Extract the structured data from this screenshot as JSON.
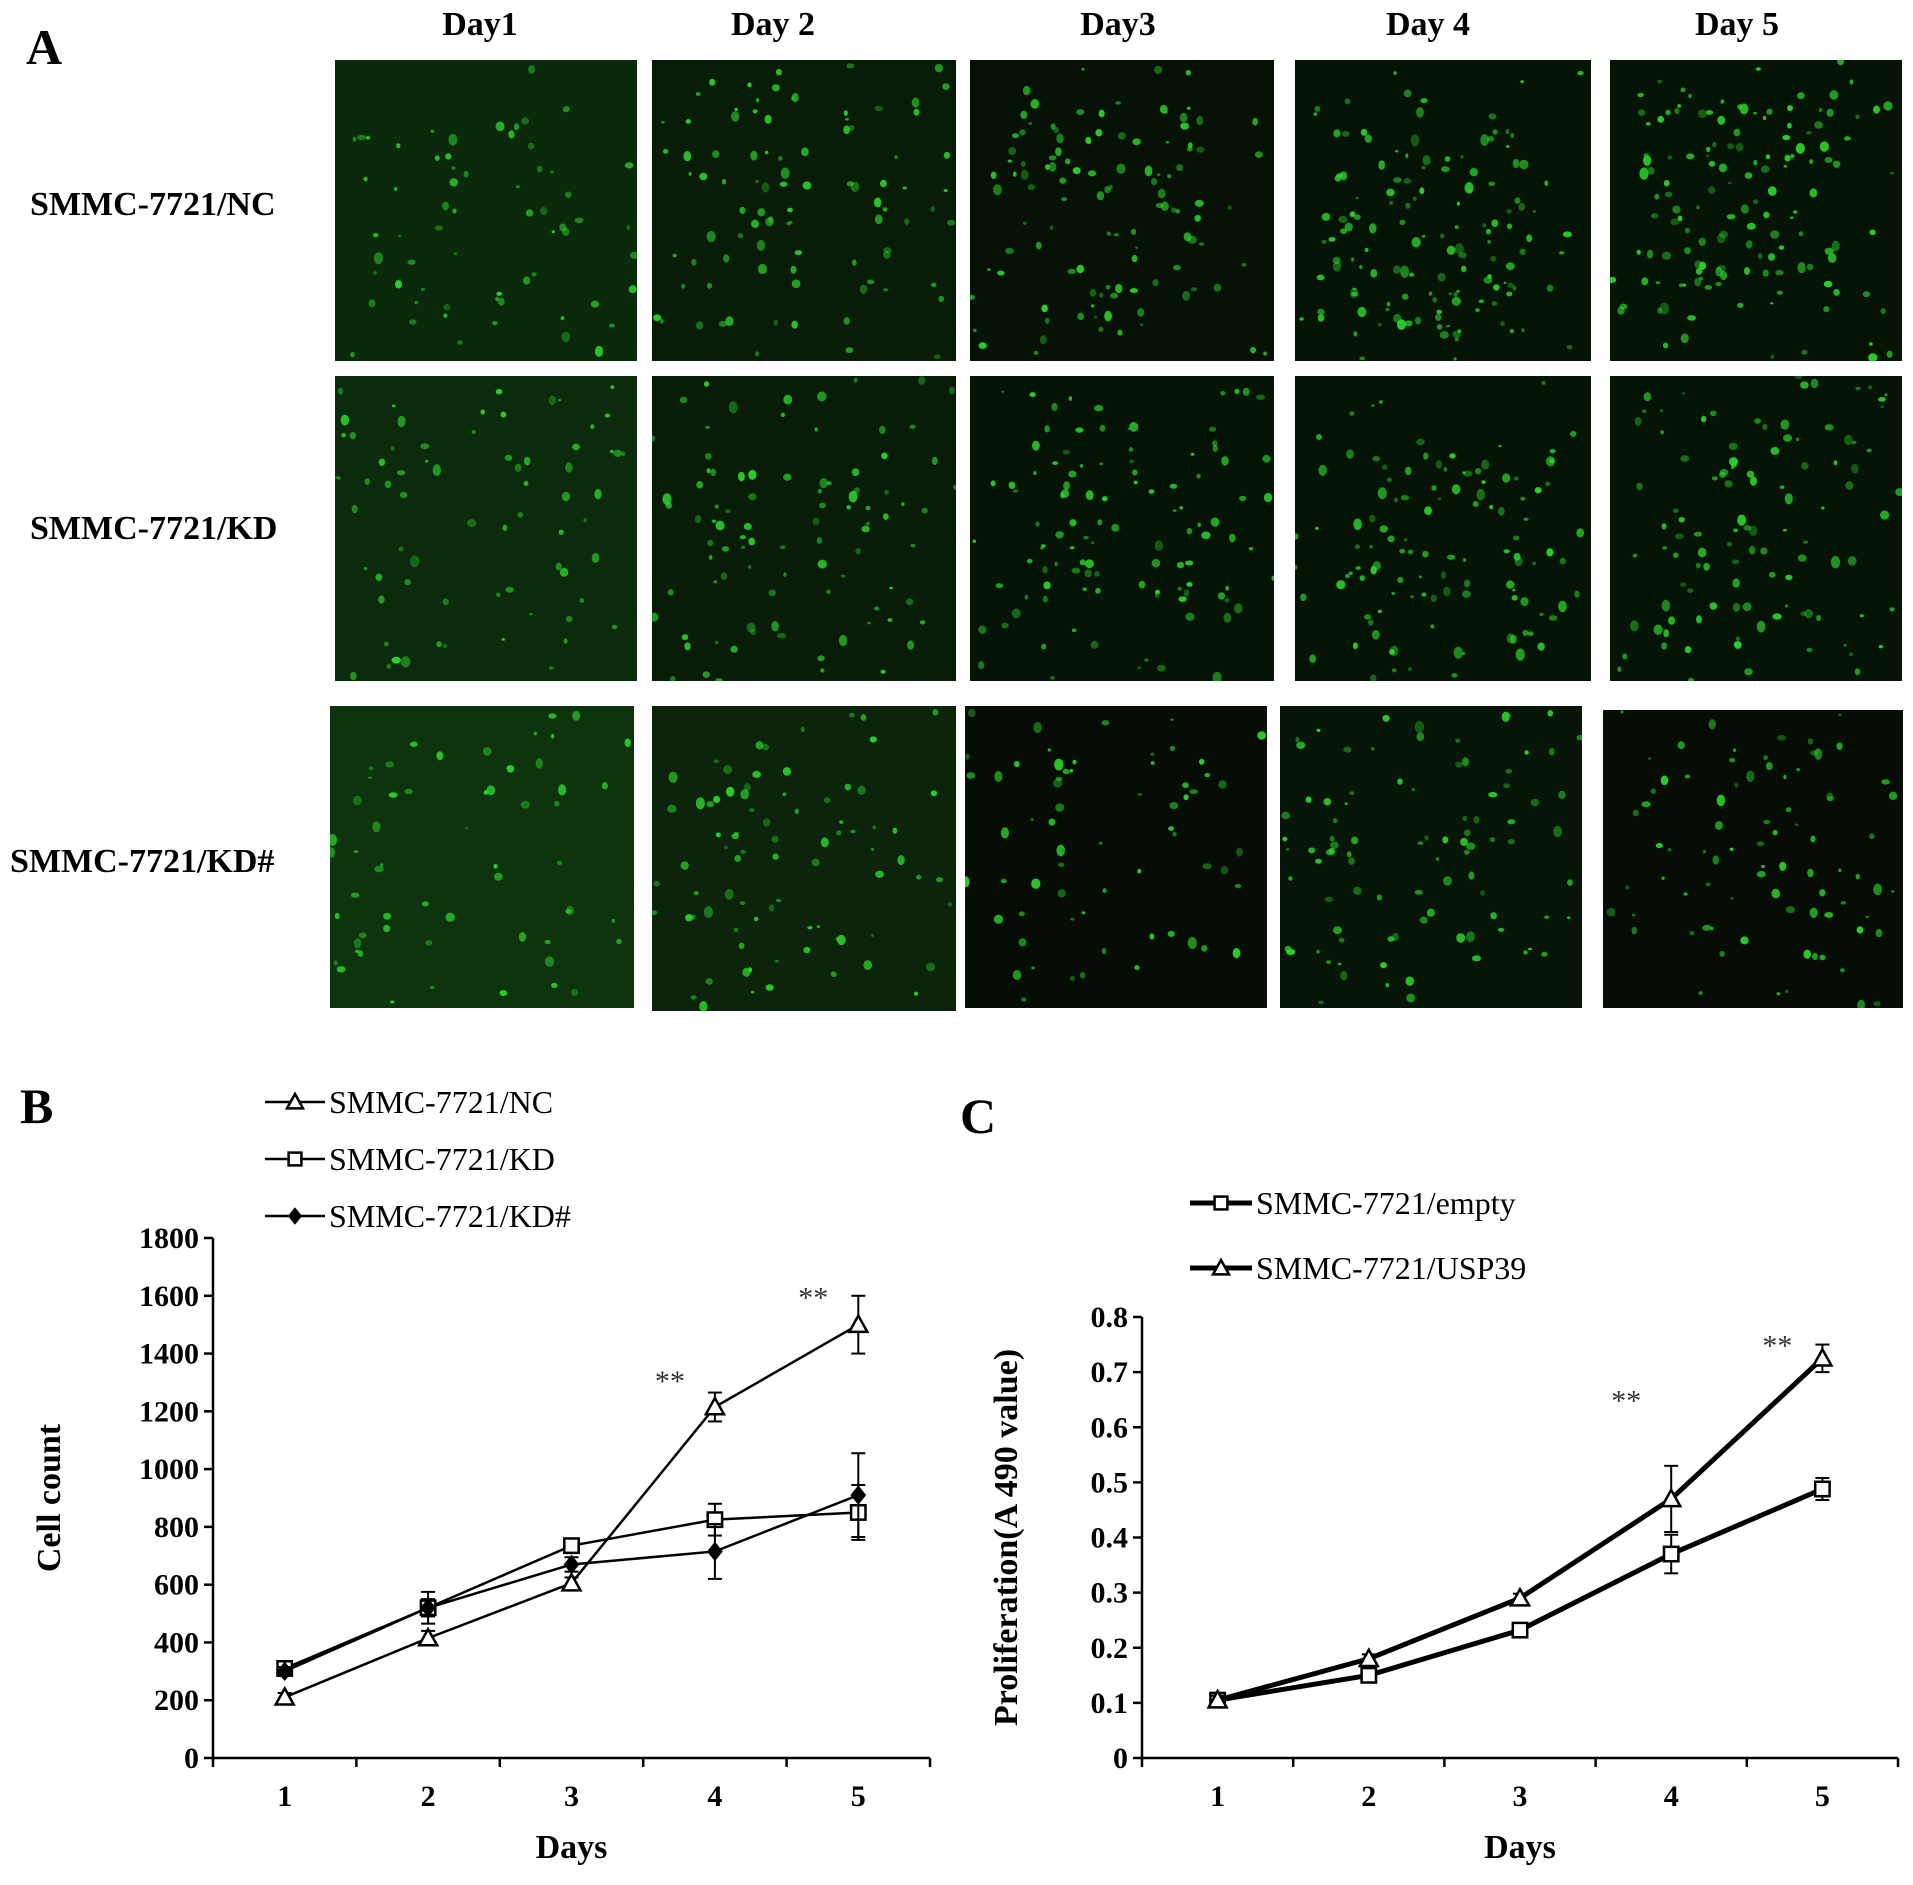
{
  "panel_a": {
    "letter": "A",
    "days": [
      "Day1",
      "Day 2",
      "Day3",
      "Day 4",
      "Day 5"
    ],
    "rows": [
      "SMMC-7721/NC",
      "SMMC-7721/KD",
      "SMMC-7721/KD#"
    ],
    "image_color": "#2fd62f",
    "density": [
      [
        0.3,
        0.55,
        0.75,
        1.0,
        1.0
      ],
      [
        0.35,
        0.55,
        0.7,
        0.75,
        0.7
      ],
      [
        0.25,
        0.45,
        0.3,
        0.55,
        0.45
      ]
    ]
  },
  "panel_b": {
    "letter": "B"
  },
  "panel_c": {
    "letter": "C"
  },
  "chart_data": [
    {
      "type": "line",
      "panel": "B",
      "x": [
        1,
        2,
        3,
        4,
        5
      ],
      "xlabel": "Days",
      "ylabel": "Cell count",
      "ylim": [
        0,
        1800
      ],
      "yticks": [
        0,
        200,
        400,
        600,
        800,
        1000,
        1200,
        1400,
        1600,
        1800
      ],
      "legend_position": "top-left",
      "series": [
        {
          "name": "SMMC-7721/NC",
          "marker": "triangle-open",
          "values": [
            210,
            415,
            605,
            1215,
            1500
          ],
          "errors": [
            15,
            25,
            20,
            50,
            100
          ]
        },
        {
          "name": "SMMC-7721/KD",
          "marker": "square-open",
          "values": [
            310,
            520,
            735,
            825,
            850
          ],
          "errors": [
            15,
            30,
            15,
            55,
            95
          ]
        },
        {
          "name": "SMMC-7721/KD#",
          "marker": "diamond-filled",
          "values": [
            300,
            520,
            670,
            715,
            910
          ],
          "errors": [
            15,
            55,
            25,
            95,
            145
          ]
        }
      ],
      "annotations": [
        {
          "x": 4,
          "y": 1270,
          "text": "**"
        },
        {
          "x": 5,
          "y": 1560,
          "text": "**"
        }
      ]
    },
    {
      "type": "line",
      "panel": "C",
      "x": [
        1,
        2,
        3,
        4,
        5
      ],
      "xlabel": "Days",
      "ylabel": "Proliferation(A 490 value)",
      "ylim": [
        0,
        0.8
      ],
      "yticks": [
        0,
        0.1,
        0.2,
        0.3,
        0.4,
        0.5,
        0.6,
        0.7,
        0.8
      ],
      "legend_position": "top-left",
      "series": [
        {
          "name": "SMMC-7721/empty",
          "marker": "square-open",
          "values": [
            0.105,
            0.15,
            0.232,
            0.37,
            0.488
          ],
          "errors": [
            0.008,
            0.008,
            0.008,
            0.035,
            0.02
          ]
        },
        {
          "name": "SMMC-7721/USP39",
          "marker": "triangle-open",
          "values": [
            0.105,
            0.18,
            0.29,
            0.47,
            0.725
          ],
          "errors": [
            0.008,
            0.008,
            0.008,
            0.06,
            0.025
          ]
        }
      ],
      "annotations": [
        {
          "x": 4,
          "y": 0.63,
          "text": "**"
        },
        {
          "x": 5,
          "y": 0.73,
          "text": "**"
        }
      ]
    }
  ]
}
